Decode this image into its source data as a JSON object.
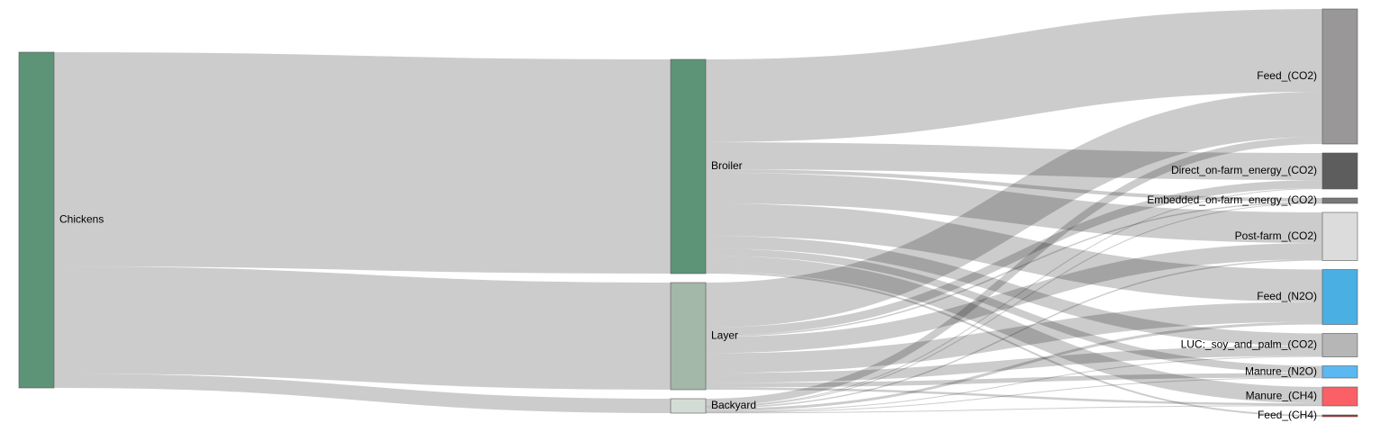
{
  "chart_data": {
    "type": "sankey",
    "link_color": "#000000",
    "nodes": [
      {
        "name": "Chickens",
        "color": "#5d9478"
      },
      {
        "name": "Broiler",
        "color": "#5d9478"
      },
      {
        "name": "Layer",
        "color": "#a3b8a9"
      },
      {
        "name": "Backyard",
        "color": "#d3ddd6"
      },
      {
        "name": "Feed_(CO2)",
        "color": "#999797"
      },
      {
        "name": "Direct_on-farm_energy_(CO2)",
        "color": "#5d5d5d"
      },
      {
        "name": "Embedded_on-farm_energy_(CO2)",
        "color": "#777777"
      },
      {
        "name": "Post-farm_(CO2)",
        "color": "#dcdcdc"
      },
      {
        "name": "Feed_(N2O)",
        "color": "#4ab0e4"
      },
      {
        "name": "LUC:_soy_and_palm_(CO2)",
        "color": "#b6b6b6"
      },
      {
        "name": "Manure_(N2O)",
        "color": "#5bb8f0"
      },
      {
        "name": "Manure_(CH4)",
        "color": "#fa6066"
      },
      {
        "name": "Feed_(CH4)",
        "color": "#aa3333"
      }
    ],
    "links": [
      {
        "source": 0,
        "target": 1,
        "value": 238
      },
      {
        "source": 0,
        "target": 2,
        "value": 119
      },
      {
        "source": 0,
        "target": 3,
        "value": 16
      },
      {
        "source": 1,
        "target": 4,
        "value": 92
      },
      {
        "source": 1,
        "target": 5,
        "value": 30
      },
      {
        "source": 1,
        "target": 6,
        "value": 4
      },
      {
        "source": 1,
        "target": 7,
        "value": 34
      },
      {
        "source": 1,
        "target": 8,
        "value": 36
      },
      {
        "source": 1,
        "target": 9,
        "value": 14
      },
      {
        "source": 1,
        "target": 10,
        "value": 8
      },
      {
        "source": 1,
        "target": 11,
        "value": 18
      },
      {
        "source": 1,
        "target": 12,
        "value": 2
      },
      {
        "source": 2,
        "target": 4,
        "value": 50
      },
      {
        "source": 2,
        "target": 5,
        "value": 9
      },
      {
        "source": 2,
        "target": 6,
        "value": 1.5
      },
      {
        "source": 2,
        "target": 7,
        "value": 18
      },
      {
        "source": 2,
        "target": 8,
        "value": 22
      },
      {
        "source": 2,
        "target": 9,
        "value": 11
      },
      {
        "source": 2,
        "target": 10,
        "value": 5
      },
      {
        "source": 2,
        "target": 11,
        "value": 2.5
      },
      {
        "source": 3,
        "target": 4,
        "value": 8
      },
      {
        "source": 3,
        "target": 5,
        "value": 1
      },
      {
        "source": 3,
        "target": 6,
        "value": 0.5
      },
      {
        "source": 3,
        "target": 7,
        "value": 1.5
      },
      {
        "source": 3,
        "target": 8,
        "value": 3
      },
      {
        "source": 3,
        "target": 9,
        "value": 1
      },
      {
        "source": 3,
        "target": 10,
        "value": 0.5
      },
      {
        "source": 3,
        "target": 11,
        "value": 0.5
      }
    ]
  }
}
